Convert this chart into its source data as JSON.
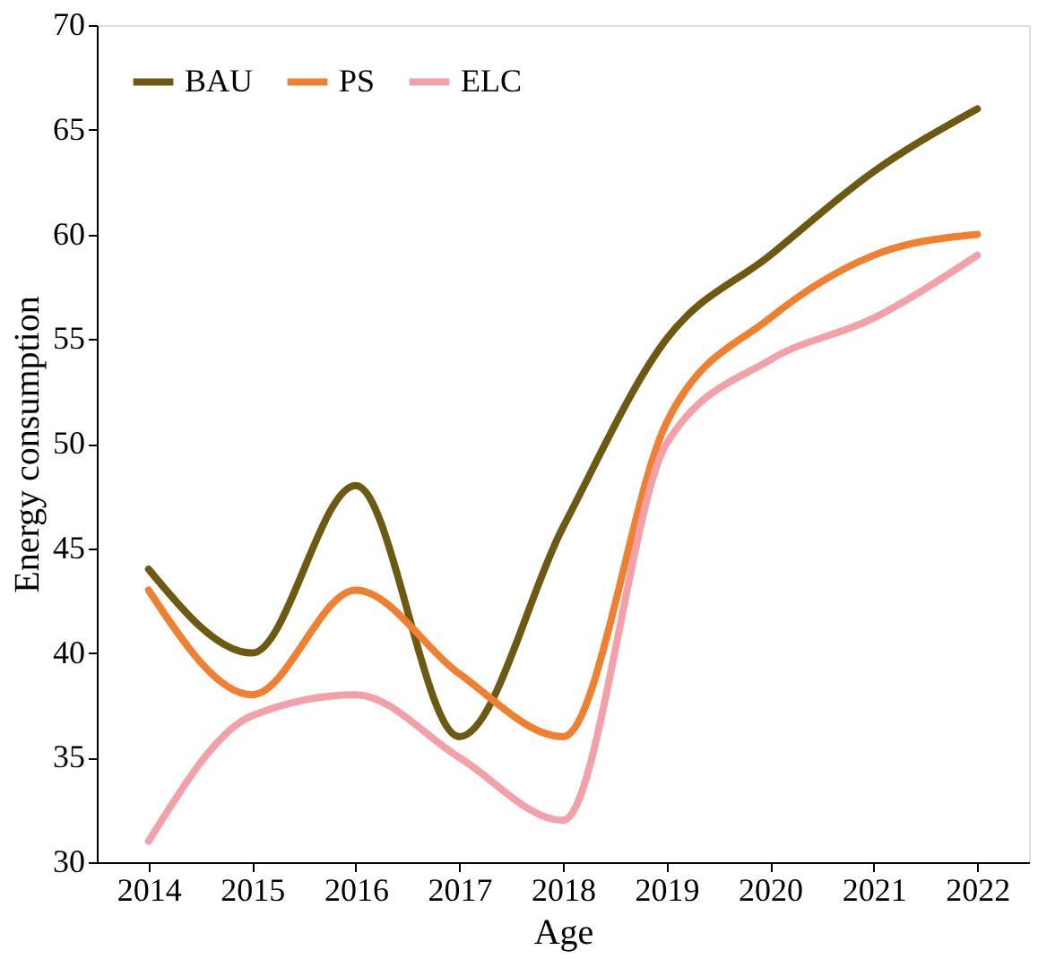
{
  "chart_data": {
    "type": "line",
    "xlabel": "Age",
    "ylabel": "Energy consumption",
    "categories": [
      "2014",
      "2015",
      "2016",
      "2017",
      "2018",
      "2019",
      "2020",
      "2021",
      "2022"
    ],
    "series": [
      {
        "name": "BAU",
        "color": "#6b5a10",
        "values": [
          44,
          40,
          48,
          36,
          46,
          55,
          59,
          63,
          66
        ]
      },
      {
        "name": "PS",
        "color": "#f08030",
        "values": [
          43,
          38,
          43,
          39,
          36,
          51,
          56,
          59,
          60
        ]
      },
      {
        "name": "ELC",
        "color": "#f4a0a8",
        "values": [
          31,
          37,
          38,
          35,
          32,
          50,
          54,
          56,
          59
        ]
      }
    ],
    "ylim": [
      30,
      70
    ],
    "yticks": [
      30,
      35,
      40,
      45,
      50,
      55,
      60,
      65,
      70
    ],
    "grid": false,
    "legend": "top left",
    "marker": "none",
    "line_style": "solid"
  }
}
